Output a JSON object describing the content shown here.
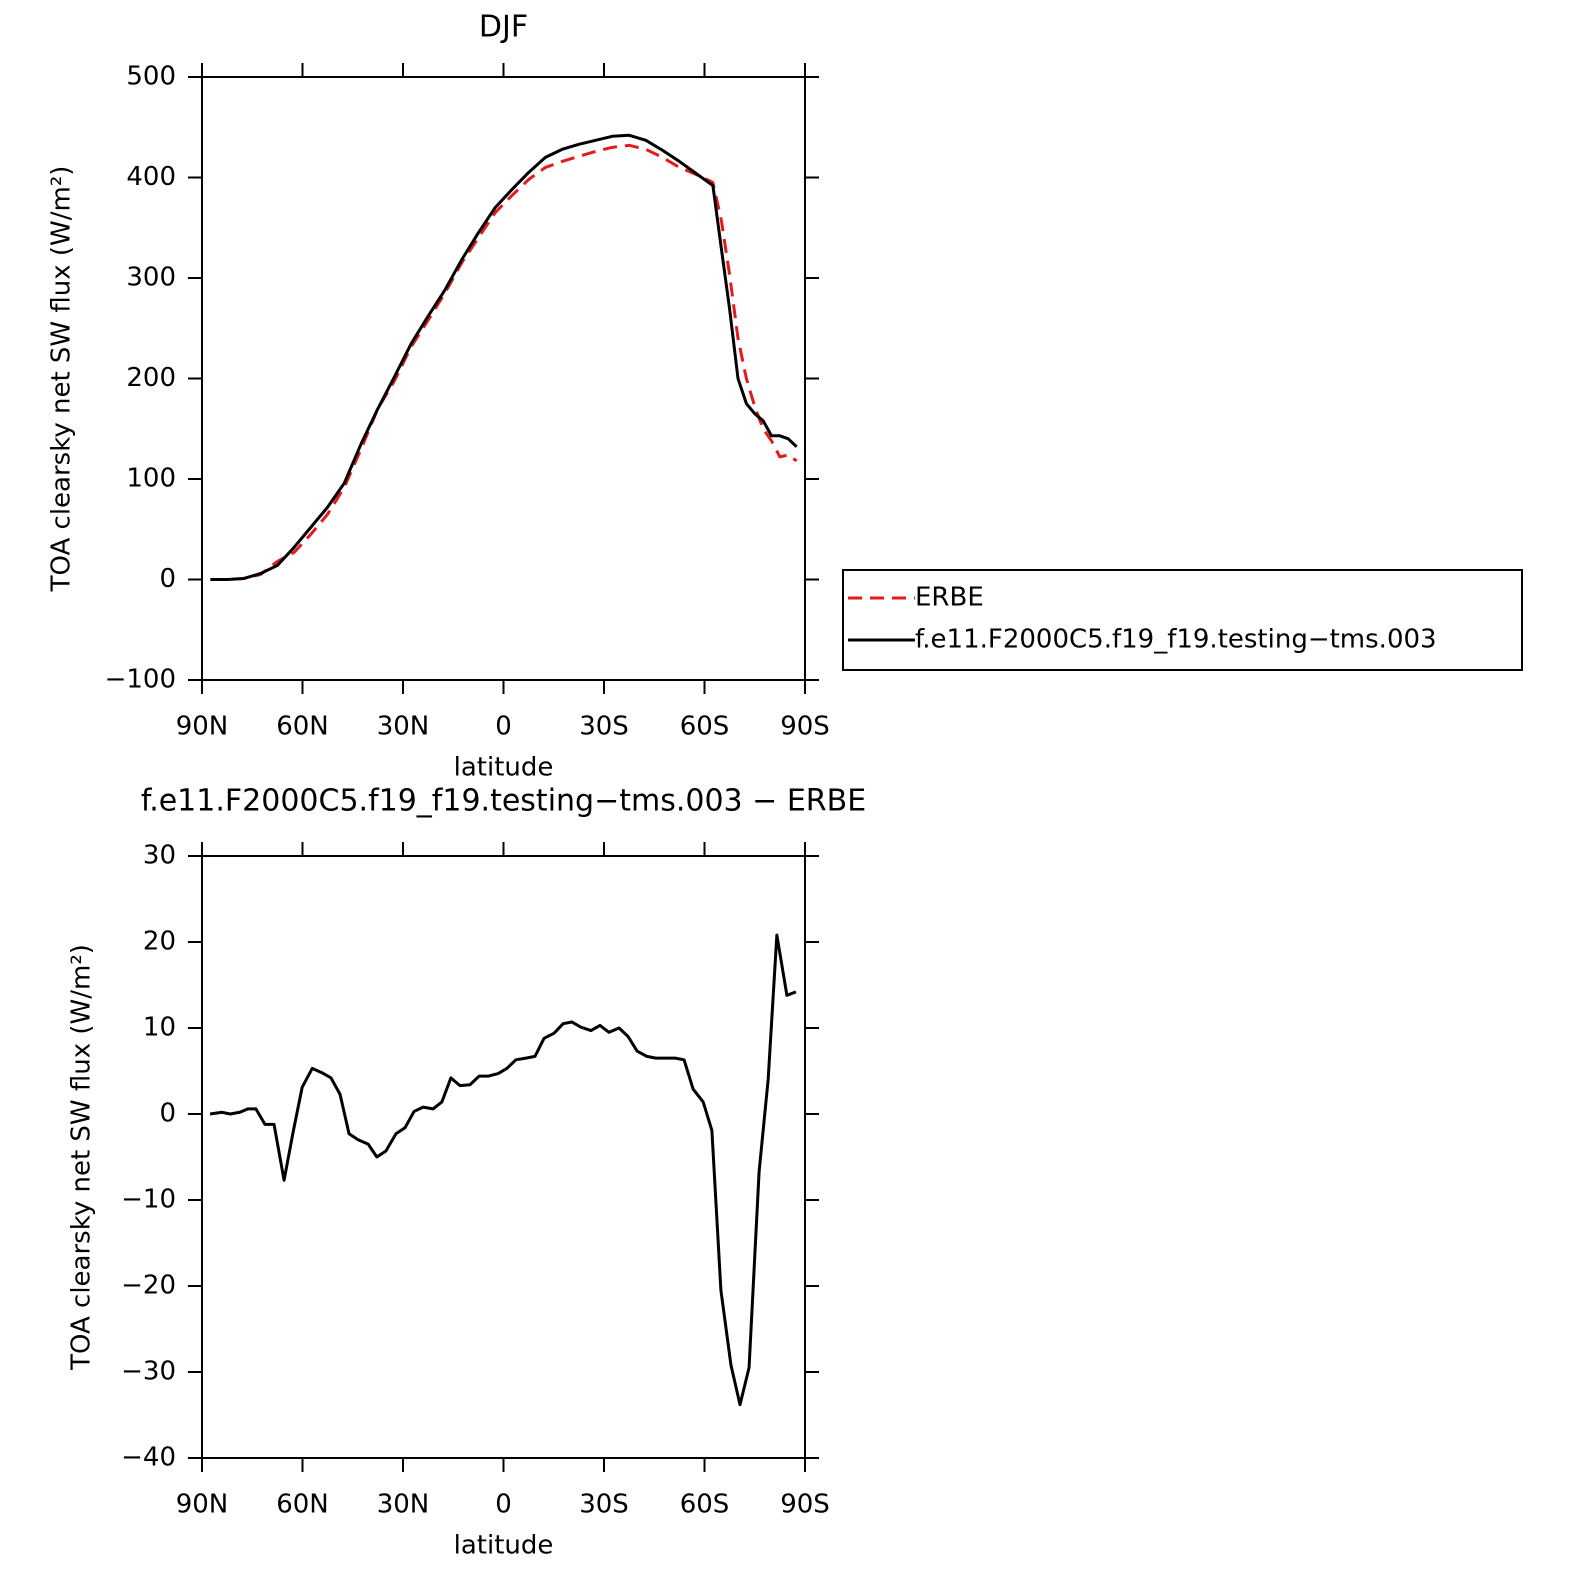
{
  "chart_data": [
    {
      "type": "line",
      "title": "DJF",
      "xlabel": "latitude",
      "ylabel": "TOA clearsky net SW flux (W/m²)",
      "x": [
        87.5,
        82.5,
        77.5,
        72.5,
        67.5,
        62.5,
        57.5,
        52.5,
        47.5,
        42.5,
        37.5,
        32.5,
        27.5,
        22.5,
        17.5,
        12.5,
        7.5,
        2.5,
        -2.5,
        -7.5,
        -12.5,
        -17.5,
        -22.5,
        -27.5,
        -32.5,
        -37.5,
        -42.5,
        -47.5,
        -52.5,
        -57.5,
        -62.5,
        -65,
        -67.5,
        -70,
        -72.5,
        -75,
        -77.5,
        -80,
        -82.5,
        -85,
        -87.5
      ],
      "series": [
        {
          "name": "ERBE",
          "color": "#e41a1c",
          "dash": true,
          "values": [
            0,
            0,
            1,
            5,
            18,
            27,
            45,
            65,
            92,
            130,
            170,
            198,
            232,
            258,
            285,
            315,
            340,
            365,
            382,
            398,
            410,
            416,
            421,
            426,
            430,
            432,
            428,
            420,
            410,
            403,
            395,
            358,
            303,
            240,
            200,
            172,
            150,
            138,
            122,
            124,
            118
          ]
        },
        {
          "name": "f.e11.F2000C5.f19_f19.testing−tms.003",
          "color": "#000000",
          "dash": false,
          "values": [
            0,
            0,
            1,
            6,
            14,
            32,
            52,
            72,
            96,
            135,
            170,
            202,
            235,
            262,
            288,
            318,
            345,
            370,
            388,
            405,
            420,
            428,
            433,
            437,
            441,
            442,
            437,
            427,
            416,
            404,
            392,
            330,
            269,
            200,
            175,
            165,
            158,
            143,
            143,
            140,
            132
          ]
        }
      ],
      "xlim": [
        90,
        -90
      ],
      "ylim": [
        -100,
        500
      ],
      "xticks": [
        {
          "value": 90,
          "label": "90N"
        },
        {
          "value": 60,
          "label": "60N"
        },
        {
          "value": 30,
          "label": "30N"
        },
        0,
        {
          "value": -30,
          "label": "30S"
        },
        {
          "value": -60,
          "label": "60S"
        },
        {
          "value": -90,
          "label": "90S"
        }
      ],
      "yticks": [
        {
          "value": -100,
          "label": "−100"
        },
        0,
        100,
        200,
        300,
        400,
        500
      ],
      "legend": "right"
    },
    {
      "type": "line",
      "title": "f.e11.F2000C5.f19_f19.testing−tms.003 − ERBE",
      "xlabel": "latitude",
      "ylabel": "TOA clearsky net SW flux (W/m²)",
      "x": [
        87.6,
        84.0,
        81.6,
        78.7,
        76.3,
        73.9,
        71.2,
        68.5,
        65.5,
        62.8,
        60.1,
        57.1,
        54.2,
        51.5,
        48.8,
        46.1,
        43.4,
        40.4,
        37.8,
        35.1,
        32.1,
        29.4,
        26.7,
        24.0,
        21.0,
        18.4,
        15.7,
        13.0,
        10.0,
        7.3,
        4.6,
        1.6,
        -1.0,
        -3.7,
        -6.7,
        -9.4,
        -12.1,
        -15.1,
        -17.8,
        -20.4,
        -23.1,
        -26.1,
        -28.8,
        -31.5,
        -34.5,
        -37.2,
        -39.9,
        -42.8,
        -45.5,
        -48.2,
        -51.2,
        -53.9,
        -56.6,
        -59.6,
        -62.2,
        -64.9,
        -67.9,
        -70.6,
        -73.3,
        -76.3,
        -79.0,
        -81.6,
        -84.6,
        -87.3
      ],
      "series": [
        {
          "color": "#000000",
          "dash": false,
          "values": [
            0,
            0.2,
            0,
            0.2,
            0.6,
            0.6,
            -1.2,
            -1.2,
            -7.7,
            -2.1,
            3.1,
            5.3,
            4.8,
            4.2,
            2.3,
            -2.3,
            -3.0,
            -3.5,
            -5,
            -4.3,
            -2.3,
            -1.6,
            0.3,
            0.8,
            0.6,
            1.4,
            4.2,
            3.3,
            3.4,
            4.4,
            4.4,
            4.7,
            5.3,
            6.3,
            6.5,
            6.7,
            8.8,
            9.4,
            10.5,
            10.7,
            10.1,
            9.7,
            10.3,
            9.5,
            10,
            9,
            7.3,
            6.7,
            6.5,
            6.5,
            6.5,
            6.3,
            2.9,
            1.4,
            -1.9,
            -20.5,
            -29.2,
            -33.8,
            -29.5,
            -6.7,
            4,
            20.8,
            13.8,
            14.2
          ]
        }
      ],
      "xlim": [
        90,
        -90
      ],
      "ylim": [
        -40,
        30
      ],
      "xticks": [
        {
          "value": 90,
          "label": "90N"
        },
        {
          "value": 60,
          "label": "60N"
        },
        {
          "value": 30,
          "label": "30N"
        },
        0,
        {
          "value": -30,
          "label": "30S"
        },
        {
          "value": -60,
          "label": "60S"
        },
        {
          "value": -90,
          "label": "90S"
        }
      ],
      "yticks": [
        {
          "value": -40,
          "label": "−40"
        },
        {
          "value": -30,
          "label": "−30"
        },
        {
          "value": -20,
          "label": "−20"
        },
        {
          "value": -10,
          "label": "−10"
        },
        0,
        10,
        20,
        30
      ]
    }
  ]
}
